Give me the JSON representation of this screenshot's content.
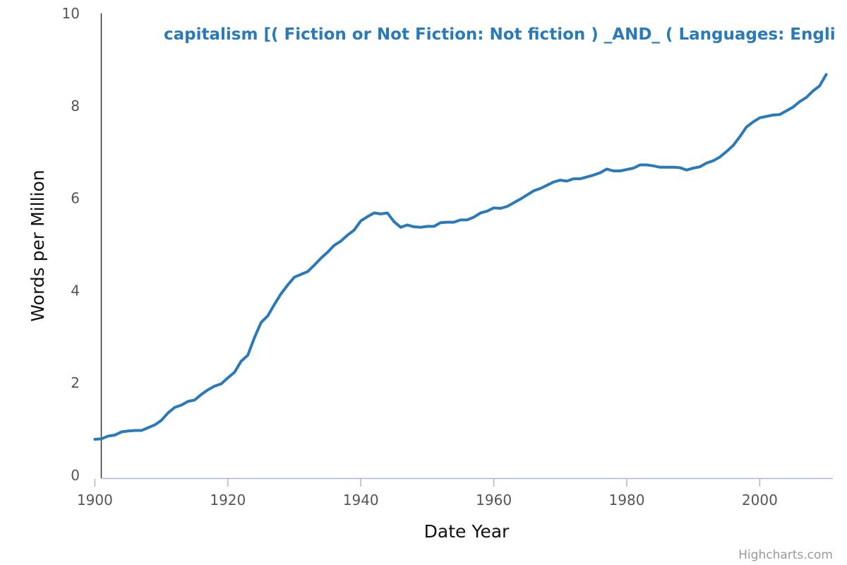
{
  "chart_data": {
    "type": "line",
    "title": "",
    "xlabel": "Date Year",
    "ylabel": "Words per Million",
    "xlim": [
      1899,
      2011
    ],
    "ylim": [
      0,
      10
    ],
    "x_ticks": [
      "1900",
      "1920",
      "1940",
      "1960",
      "1980",
      "2000"
    ],
    "y_ticks": [
      "0",
      "2",
      "4",
      "6",
      "8",
      "10"
    ],
    "grid": false,
    "series_color": "#2a7ab8",
    "series": [
      {
        "name": "capitalism [( Fiction or Not Fiction: Not fiction ) _AND_ ( Languages: Engli",
        "x": [
          1900,
          1901,
          1902,
          1903,
          1904,
          1905,
          1906,
          1907,
          1908,
          1909,
          1910,
          1911,
          1912,
          1913,
          1914,
          1915,
          1916,
          1917,
          1918,
          1919,
          1920,
          1921,
          1922,
          1923,
          1924,
          1925,
          1926,
          1927,
          1928,
          1929,
          1930,
          1931,
          1932,
          1933,
          1934,
          1935,
          1936,
          1937,
          1938,
          1939,
          1940,
          1941,
          1942,
          1943,
          1944,
          1945,
          1946,
          1947,
          1948,
          1949,
          1950,
          1951,
          1952,
          1953,
          1954,
          1955,
          1956,
          1957,
          1958,
          1959,
          1960,
          1961,
          1962,
          1963,
          1964,
          1965,
          1966,
          1967,
          1968,
          1969,
          1970,
          1971,
          1972,
          1973,
          1974,
          1975,
          1976,
          1977,
          1978,
          1979,
          1980,
          1981,
          1982,
          1983,
          1984,
          1985,
          1986,
          1987,
          1988,
          1989,
          1990,
          1991,
          1992,
          1993,
          1994,
          1995,
          1996,
          1997,
          1998,
          1999,
          2000,
          2001,
          2002,
          2003,
          2004,
          2005,
          2006,
          2007,
          2008,
          2009,
          2010
        ],
        "y": [
          0.78,
          0.79,
          0.85,
          0.87,
          0.94,
          0.96,
          0.97,
          0.97,
          1.03,
          1.09,
          1.19,
          1.35,
          1.47,
          1.52,
          1.6,
          1.63,
          1.75,
          1.85,
          1.93,
          1.98,
          2.11,
          2.23,
          2.47,
          2.6,
          2.98,
          3.31,
          3.45,
          3.7,
          3.93,
          4.12,
          4.29,
          4.35,
          4.41,
          4.55,
          4.7,
          4.83,
          4.98,
          5.07,
          5.2,
          5.31,
          5.51,
          5.6,
          5.68,
          5.66,
          5.68,
          5.49,
          5.37,
          5.42,
          5.38,
          5.37,
          5.39,
          5.39,
          5.47,
          5.48,
          5.48,
          5.53,
          5.53,
          5.59,
          5.68,
          5.72,
          5.79,
          5.78,
          5.82,
          5.9,
          5.98,
          6.07,
          6.16,
          6.21,
          6.28,
          6.35,
          6.39,
          6.37,
          6.42,
          6.42,
          6.46,
          6.5,
          6.55,
          6.63,
          6.59,
          6.59,
          6.62,
          6.65,
          6.72,
          6.72,
          6.7,
          6.67,
          6.67,
          6.67,
          6.66,
          6.61,
          6.65,
          6.68,
          6.76,
          6.81,
          6.89,
          7.01,
          7.14,
          7.33,
          7.54,
          7.65,
          7.74,
          7.77,
          7.8,
          7.81,
          7.89,
          7.97,
          8.09,
          8.18,
          8.32,
          8.43,
          8.68
        ]
      }
    ]
  },
  "credits": "Highcharts.com"
}
